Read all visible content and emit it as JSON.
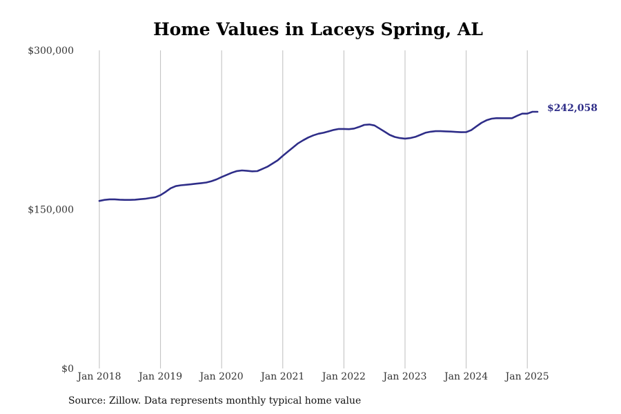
{
  "chart_data": {
    "type": "line",
    "title": "Home Values in Laceys Spring, AL",
    "xlabel": "",
    "ylabel": "",
    "ylim": [
      0,
      300000
    ],
    "y_ticks": [
      {
        "value": 0,
        "label": "$0"
      },
      {
        "value": 150000,
        "label": "$150,000"
      },
      {
        "value": 300000,
        "label": "$300,000"
      }
    ],
    "x_ticks": [
      {
        "value": "2018-01",
        "label": "Jan 2018"
      },
      {
        "value": "2019-01",
        "label": "Jan 2019"
      },
      {
        "value": "2020-01",
        "label": "Jan 2020"
      },
      {
        "value": "2021-01",
        "label": "Jan 2021"
      },
      {
        "value": "2022-01",
        "label": "Jan 2022"
      },
      {
        "value": "2023-01",
        "label": "Jan 2023"
      },
      {
        "value": "2024-01",
        "label": "Jan 2024"
      },
      {
        "value": "2025-01",
        "label": "Jan 2025"
      }
    ],
    "x_range": [
      "2018-01",
      "2025-03"
    ],
    "grid": "vertical",
    "line_color": "#2e2d88",
    "end_label": "$242,058",
    "series": [
      {
        "x": [
          "2018-01",
          "2018-02",
          "2018-03",
          "2018-04",
          "2018-05",
          "2018-06",
          "2018-07",
          "2018-08",
          "2018-09",
          "2018-10",
          "2018-11",
          "2018-12",
          "2019-01",
          "2019-02",
          "2019-03",
          "2019-04",
          "2019-05",
          "2019-06",
          "2019-07",
          "2019-08",
          "2019-09",
          "2019-10",
          "2019-11",
          "2019-12",
          "2020-01",
          "2020-02",
          "2020-03",
          "2020-04",
          "2020-05",
          "2020-06",
          "2020-07",
          "2020-08",
          "2020-09",
          "2020-10",
          "2020-11",
          "2020-12",
          "2021-01",
          "2021-02",
          "2021-03",
          "2021-04",
          "2021-05",
          "2021-06",
          "2021-07",
          "2021-08",
          "2021-09",
          "2021-10",
          "2021-11",
          "2021-12",
          "2022-01",
          "2022-02",
          "2022-03",
          "2022-04",
          "2022-05",
          "2022-06",
          "2022-07",
          "2022-08",
          "2022-09",
          "2022-10",
          "2022-11",
          "2022-12",
          "2023-01",
          "2023-02",
          "2023-03",
          "2023-04",
          "2023-05",
          "2023-06",
          "2023-07",
          "2023-08",
          "2023-09",
          "2023-10",
          "2023-11",
          "2023-12",
          "2024-01",
          "2024-02",
          "2024-03",
          "2024-04",
          "2024-05",
          "2024-06",
          "2024-07",
          "2024-08",
          "2024-09",
          "2024-10",
          "2024-11",
          "2024-12",
          "2025-01",
          "2025-02",
          "2025-03"
        ],
        "values": [
          158000,
          159000,
          159500,
          159500,
          159200,
          159000,
          159000,
          159200,
          159600,
          160000,
          160800,
          161500,
          163500,
          166500,
          170000,
          172000,
          172800,
          173200,
          173700,
          174300,
          174800,
          175400,
          176600,
          178300,
          180500,
          182600,
          184600,
          186200,
          186800,
          186400,
          185900,
          186100,
          188200,
          190300,
          193300,
          196300,
          200500,
          204500,
          208400,
          212300,
          215200,
          217800,
          219800,
          221400,
          222300,
          223600,
          225000,
          225900,
          225900,
          225700,
          226300,
          227800,
          229700,
          230100,
          229200,
          226300,
          223300,
          220300,
          218300,
          217300,
          216800,
          217300,
          218400,
          220300,
          222300,
          223300,
          223800,
          223800,
          223600,
          223400,
          223100,
          222800,
          222900,
          224800,
          228300,
          231700,
          234100,
          235600,
          236100,
          236000,
          236000,
          236000,
          238300,
          240300,
          240300,
          242058,
          242058
        ]
      }
    ]
  },
  "source": "Source: Zillow. Data represents monthly typical home value"
}
